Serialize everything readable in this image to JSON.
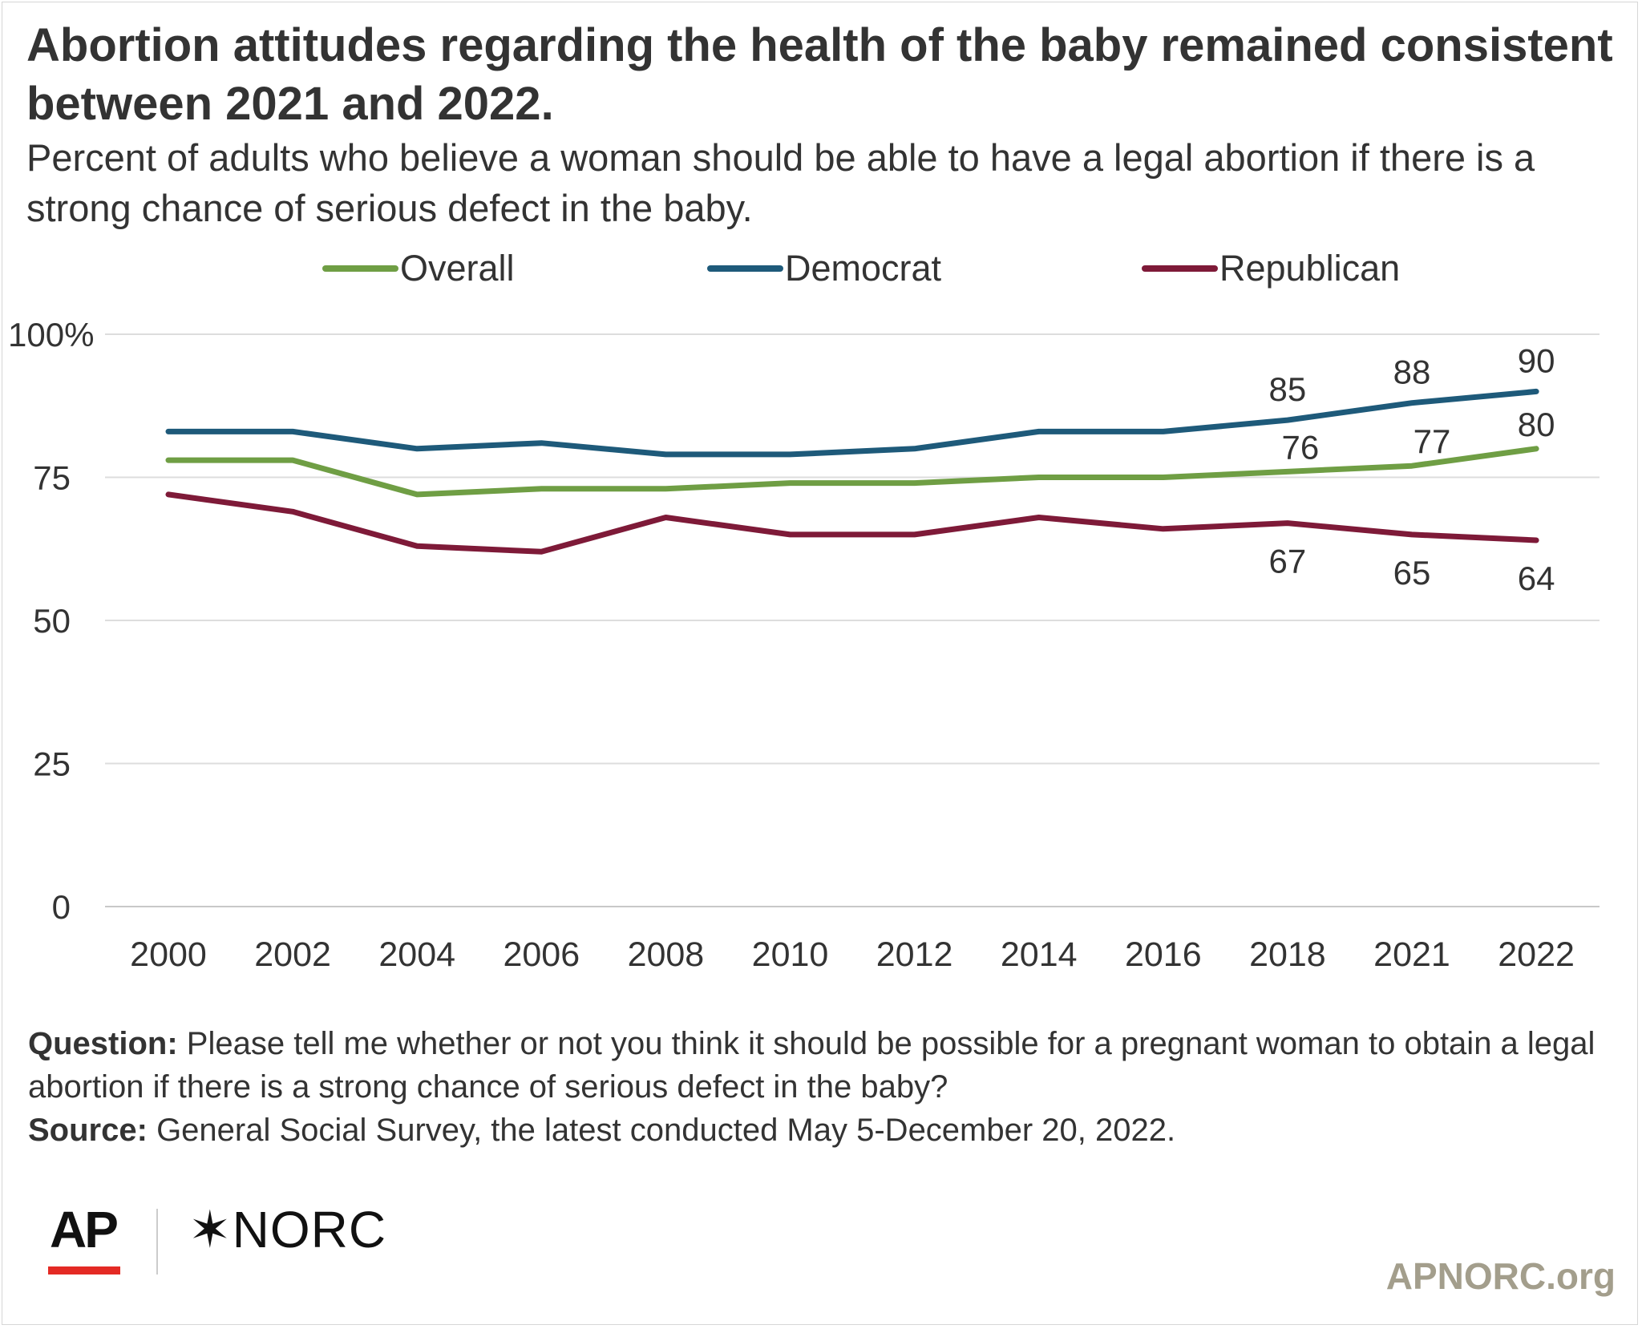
{
  "title": "Abortion attitudes regarding the health of the baby remained consistent between 2021 and 2022.",
  "subtitle": "Percent of adults who believe a woman should be able to have a legal abortion if there is a strong chance of serious defect in the baby.",
  "legend": [
    {
      "label": "Overall",
      "color": "#6f9e44"
    },
    {
      "label": "Democrat",
      "color": "#1e5a7a"
    },
    {
      "label": "Republican",
      "color": "#7e1a38"
    }
  ],
  "chart_data": {
    "type": "line",
    "categories": [
      "2000",
      "2002",
      "2004",
      "2006",
      "2008",
      "2010",
      "2012",
      "2014",
      "2016",
      "2018",
      "2021",
      "2022"
    ],
    "series": [
      {
        "name": "Overall",
        "color": "#6f9e44",
        "values": [
          78,
          78,
          72,
          73,
          73,
          74,
          74,
          75,
          75,
          76,
          77,
          80
        ]
      },
      {
        "name": "Democrat",
        "color": "#1e5a7a",
        "values": [
          83,
          83,
          80,
          81,
          79,
          79,
          80,
          83,
          83,
          85,
          88,
          90
        ]
      },
      {
        "name": "Republican",
        "color": "#7e1a38",
        "values": [
          72,
          69,
          63,
          62,
          68,
          65,
          65,
          68,
          66,
          67,
          65,
          64
        ]
      }
    ],
    "data_labels": [
      {
        "series": "Democrat",
        "category": "2018",
        "text": "85",
        "position": "above"
      },
      {
        "series": "Democrat",
        "category": "2021",
        "text": "88",
        "position": "above"
      },
      {
        "series": "Democrat",
        "category": "2022",
        "text": "90",
        "position": "above"
      },
      {
        "series": "Overall",
        "category": "2018",
        "text": "76",
        "position": "above"
      },
      {
        "series": "Overall",
        "category": "2021",
        "text": "77",
        "position": "above"
      },
      {
        "series": "Overall",
        "category": "2022",
        "text": "80",
        "position": "above"
      },
      {
        "series": "Republican",
        "category": "2018",
        "text": "67",
        "position": "below"
      },
      {
        "series": "Republican",
        "category": "2021",
        "text": "65",
        "position": "below"
      },
      {
        "series": "Republican",
        "category": "2022",
        "text": "64",
        "position": "below"
      }
    ],
    "y_ticks": [
      0,
      25,
      50,
      75,
      100
    ],
    "y_tick_labels": [
      "0",
      "25",
      "50",
      "75",
      "100%"
    ],
    "ylim": [
      0,
      100
    ],
    "xlabel": "",
    "ylabel": "",
    "grid": true,
    "legend_position": "top"
  },
  "footer": {
    "question_label": "Question:",
    "question_text": "Please tell me whether or not you think it should be possible for a pregnant woman to obtain a legal abortion if there is a strong chance of serious defect in the baby?",
    "source_label": "Source:",
    "source_text": "General Social Survey, the latest conducted May 5-December 20, 2022.",
    "logo_ap": "AP",
    "logo_norc": "✶NORC",
    "site": "APNORC.org"
  }
}
